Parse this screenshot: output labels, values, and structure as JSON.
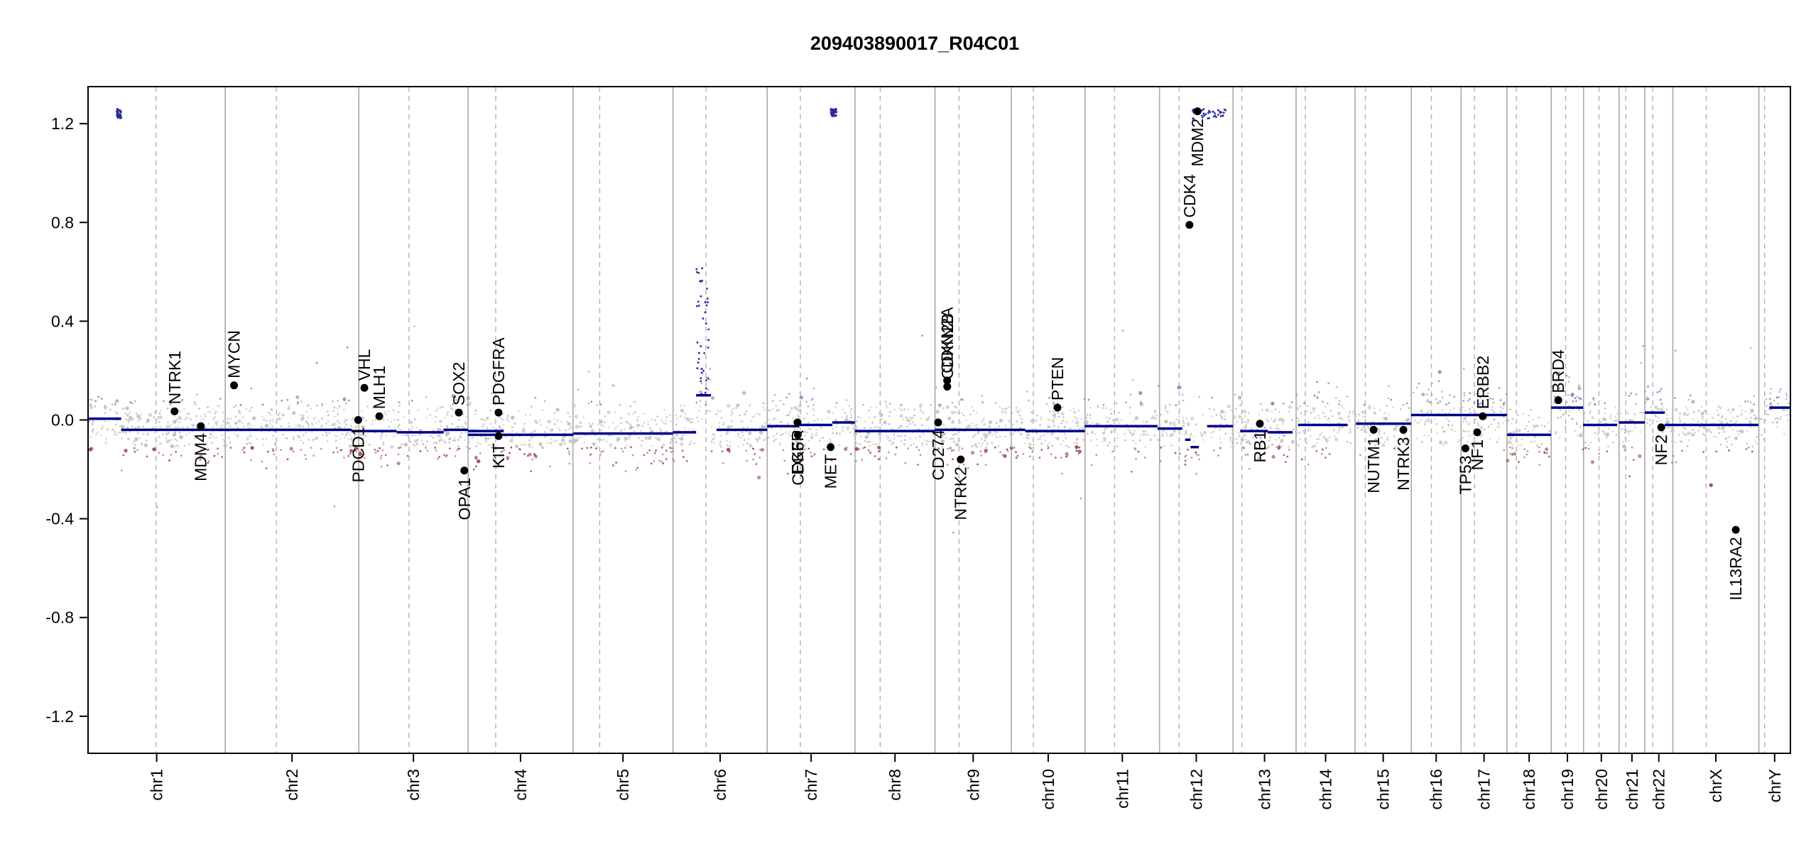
{
  "chart_data": {
    "type": "scatter",
    "title": "209403890017_R04C01",
    "xlabel": "",
    "ylabel": "",
    "ylim": [
      -1.35,
      1.35
    ],
    "yticks": [
      -1.2,
      -0.8,
      -0.4,
      0.0,
      0.4,
      0.8,
      1.2
    ],
    "ytick_labels": [
      "-1.2",
      "-0.8",
      "-0.4",
      "0.0",
      "0.4",
      "0.8",
      "1.2"
    ],
    "grid": false,
    "colors": {
      "gain": "#8c8cc0",
      "loss": "#a05050",
      "neutral": "#c0c0c0",
      "segment": "#00008b",
      "gene": "#000000"
    },
    "chromosomes": [
      {
        "name": "chr1",
        "span": [
          0.0,
          248.9
        ],
        "centromere": 123.4
      },
      {
        "name": "chr2",
        "span": [
          248.9,
          491.1
        ],
        "centromere": 341.6
      },
      {
        "name": "chr3",
        "span": [
          491.1,
          689.4
        ],
        "centromere": 582.3
      },
      {
        "name": "chr4",
        "span": [
          689.4,
          879.6
        ],
        "centromere": 739.5
      },
      {
        "name": "chr5",
        "span": [
          879.6,
          1061.1
        ],
        "centromere": 928.1
      },
      {
        "name": "chr6",
        "span": [
          1061.1,
          1232.0
        ],
        "centromere": 1120.9
      },
      {
        "name": "chr7",
        "span": [
          1232.0,
          1391.3
        ],
        "centromere": 1292.1
      },
      {
        "name": "chr8",
        "span": [
          1391.3,
          1536.4
        ],
        "centromere": 1436.9
      },
      {
        "name": "chr9",
        "span": [
          1536.4,
          1674.8
        ],
        "centromere": 1580.0
      },
      {
        "name": "chr10",
        "span": [
          1674.8,
          1808.6
        ],
        "centromere": 1714.6
      },
      {
        "name": "chr11",
        "span": [
          1808.6,
          1943.7
        ],
        "centromere": 1862.1
      },
      {
        "name": "chr12",
        "span": [
          1943.7,
          2077.0
        ],
        "centromere": 1979.2
      },
      {
        "name": "chr13",
        "span": [
          2077.0,
          2191.4
        ],
        "centromere": 2093.0
      },
      {
        "name": "chr14",
        "span": [
          2191.4,
          2298.4
        ],
        "centromere": 2208.0
      },
      {
        "name": "chr15",
        "span": [
          2298.4,
          2400.4
        ],
        "centromere": 2317.0
      },
      {
        "name": "chr16",
        "span": [
          2400.4,
          2490.7
        ],
        "centromere": 2436.9
      },
      {
        "name": "chr17",
        "span": [
          2490.7,
          2574.0
        ],
        "centromere": 2515.0
      },
      {
        "name": "chr18",
        "span": [
          2574.0,
          2654.3
        ],
        "centromere": 2591.0
      },
      {
        "name": "chr19",
        "span": [
          2654.3,
          2712.9
        ],
        "centromere": 2680.4
      },
      {
        "name": "chr20",
        "span": [
          2712.9,
          2777.3
        ],
        "centromere": 2740.8
      },
      {
        "name": "chr21",
        "span": [
          2777.3,
          2824.0
        ],
        "centromere": 2789.4
      },
      {
        "name": "chr22",
        "span": [
          2824.0,
          2874.8
        ],
        "centromere": 2838.4
      },
      {
        "name": "chrX",
        "span": [
          2874.8,
          3030.9
        ],
        "centromere": 2935.4
      },
      {
        "name": "chrY",
        "span": [
          3030.9,
          3088.1
        ],
        "centromere": 3041.3
      }
    ],
    "segments": [
      {
        "x": [
          0,
          60
        ],
        "y": 0.005
      },
      {
        "x": [
          60,
          478
        ],
        "y": -0.04
      },
      {
        "x": [
          478,
          560
        ],
        "y": -0.045
      },
      {
        "x": [
          560,
          645
        ],
        "y": -0.05
      },
      {
        "x": [
          645,
          689
        ],
        "y": -0.04
      },
      {
        "x": [
          689,
          754
        ],
        "y": -0.045
      },
      {
        "x": [
          689,
          790
        ],
        "y": -0.06
      },
      {
        "x": [
          790,
          880
        ],
        "y": -0.06
      },
      {
        "x": [
          880,
          1061
        ],
        "y": -0.055
      },
      {
        "x": [
          1061,
          1103
        ],
        "y": -0.05
      },
      {
        "x": [
          1103,
          1130
        ],
        "y": 0.1
      },
      {
        "x": [
          1140,
          1232
        ],
        "y": -0.04
      },
      {
        "x": [
          1232,
          1290
        ],
        "y": -0.025
      },
      {
        "x": [
          1290,
          1350
        ],
        "y": -0.02
      },
      {
        "x": [
          1350,
          1391
        ],
        "y": -0.01
      },
      {
        "x": [
          1391,
          1536
        ],
        "y": -0.045
      },
      {
        "x": [
          1536,
          1700
        ],
        "y": -0.04
      },
      {
        "x": [
          1700,
          1808
        ],
        "y": -0.045
      },
      {
        "x": [
          1808,
          1940
        ],
        "y": -0.025
      },
      {
        "x": [
          1940,
          1985
        ],
        "y": -0.035
      },
      {
        "x": [
          1990,
          2000
        ],
        "y": -0.08
      },
      {
        "x": [
          2000,
          2015
        ],
        "y": -0.11
      },
      {
        "x": [
          2030,
          2077
        ],
        "y": -0.025
      },
      {
        "x": [
          2090,
          2140
        ],
        "y": -0.045
      },
      {
        "x": [
          2140,
          2185
        ],
        "y": -0.05
      },
      {
        "x": [
          2195,
          2285
        ],
        "y": -0.02
      },
      {
        "x": [
          2300,
          2400
        ],
        "y": -0.015
      },
      {
        "x": [
          2400,
          2574
        ],
        "y": 0.02
      },
      {
        "x": [
          2574,
          2654
        ],
        "y": -0.06
      },
      {
        "x": [
          2654,
          2712
        ],
        "y": 0.05
      },
      {
        "x": [
          2712,
          2774
        ],
        "y": -0.02
      },
      {
        "x": [
          2777,
          2824
        ],
        "y": -0.01
      },
      {
        "x": [
          2824,
          2860
        ],
        "y": 0.03
      },
      {
        "x": [
          2860,
          3030
        ],
        "y": -0.02
      },
      {
        "x": [
          3050,
          3088
        ],
        "y": 0.05
      }
    ],
    "amplified_clusters": [
      {
        "x": [
          52,
          60
        ],
        "y": [
          1.22,
          1.26
        ]
      },
      {
        "x": [
          1102,
          1126
        ],
        "y": [
          0.1,
          0.62
        ]
      },
      {
        "x": [
          1347,
          1358
        ],
        "y": [
          1.23,
          1.26
        ]
      },
      {
        "x": [
          2003,
          2067
        ],
        "y": [
          1.22,
          1.26
        ]
      }
    ],
    "genes": [
      {
        "name": "NTRK1",
        "x": 156.9,
        "y": 0.035,
        "label_side": "above"
      },
      {
        "name": "MDM4",
        "x": 204.5,
        "y": -0.025,
        "label_side": "below"
      },
      {
        "name": "MYCN",
        "x": 264.8,
        "y": 0.14,
        "label_side": "above"
      },
      {
        "name": "PDCD1",
        "x": 490.0,
        "y": 0.0,
        "label_side": "below"
      },
      {
        "name": "VHL",
        "x": 501.2,
        "y": 0.13,
        "label_side": "above"
      },
      {
        "name": "MLH1",
        "x": 528.3,
        "y": 0.015,
        "label_side": "above"
      },
      {
        "name": "SOX2",
        "x": 672.5,
        "y": 0.03,
        "label_side": "above"
      },
      {
        "name": "OPA1",
        "x": 682.5,
        "y": -0.205,
        "label_side": "below"
      },
      {
        "name": "PDGFRA",
        "x": 744.6,
        "y": 0.03,
        "label_side": "above"
      },
      {
        "name": "KIT",
        "x": 744.6,
        "y": -0.065,
        "label_side": "below"
      },
      {
        "name": "EGFR",
        "x": 1287.0,
        "y": -0.01,
        "label_side": "below"
      },
      {
        "name": "CDK6",
        "x": 1287.5,
        "y": -0.06,
        "label_side": "below"
      },
      {
        "name": "MET",
        "x": 1347.0,
        "y": -0.11,
        "label_side": "below"
      },
      {
        "name": "CD274",
        "x": 1542.0,
        "y": -0.01,
        "label_side": "below"
      },
      {
        "name": "CDKN2A",
        "x": 1558.4,
        "y": 0.16,
        "label_side": "above"
      },
      {
        "name": "CDKN2B",
        "x": 1558.6,
        "y": 0.135,
        "label_side": "above"
      },
      {
        "name": "NTRK2",
        "x": 1583.0,
        "y": -0.16,
        "label_side": "below"
      },
      {
        "name": "PTEN",
        "x": 1758.5,
        "y": 0.05,
        "label_side": "above"
      },
      {
        "name": "CDK4",
        "x": 1998.0,
        "y": 0.79,
        "label_side": "above"
      },
      {
        "name": "MDM2",
        "x": 2012.5,
        "y": 1.25,
        "label_side": "below"
      },
      {
        "name": "RB1",
        "x": 2125.7,
        "y": -0.015,
        "label_side": "below"
      },
      {
        "name": "NUTM1",
        "x": 2332.0,
        "y": -0.04,
        "label_side": "below"
      },
      {
        "name": "NTRK3",
        "x": 2386.0,
        "y": -0.04,
        "label_side": "below"
      },
      {
        "name": "TP53",
        "x": 2498.5,
        "y": -0.115,
        "label_side": "below"
      },
      {
        "name": "NF1",
        "x": 2520.0,
        "y": -0.05,
        "label_side": "below"
      },
      {
        "name": "ERBB2",
        "x": 2530.0,
        "y": 0.015,
        "label_side": "above"
      },
      {
        "name": "BRD4",
        "x": 2667.0,
        "y": 0.08,
        "label_side": "above"
      },
      {
        "name": "NF2",
        "x": 2853.8,
        "y": -0.03,
        "label_side": "below"
      },
      {
        "name": "IL13RA2",
        "x": 2989.0,
        "y": -0.445,
        "label_side": "below"
      }
    ]
  }
}
